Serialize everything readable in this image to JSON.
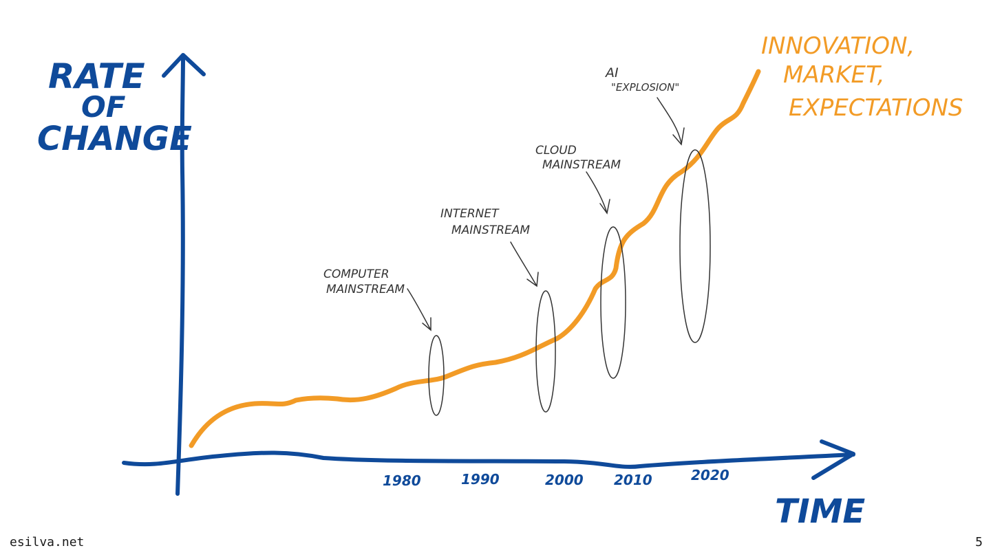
{
  "diagram": {
    "y_axis_label_lines": [
      "RATE",
      "OF",
      "CHANGE"
    ],
    "x_axis_label": "TIME",
    "x_ticks": [
      "1980",
      "1990",
      "2000",
      "2010",
      "2020"
    ],
    "curve_label_lines": [
      "INNOVATION,",
      "MARKET,",
      "EXPECTATIONS"
    ],
    "annotations": [
      {
        "lines": [
          "COMPUTER",
          "MAINSTREAM"
        ]
      },
      {
        "lines": [
          "INTERNET",
          "MAINSTREAM"
        ]
      },
      {
        "lines": [
          "CLOUD",
          "MAINSTREAM"
        ]
      },
      {
        "lines": [
          "AI",
          "\"EXPLOSION\""
        ]
      }
    ],
    "colors": {
      "axes": "#0f4a9a",
      "curve": "#f29b26",
      "annotation": "#333333"
    }
  },
  "footer": {
    "site": "esilva.net",
    "page_number": "5"
  }
}
